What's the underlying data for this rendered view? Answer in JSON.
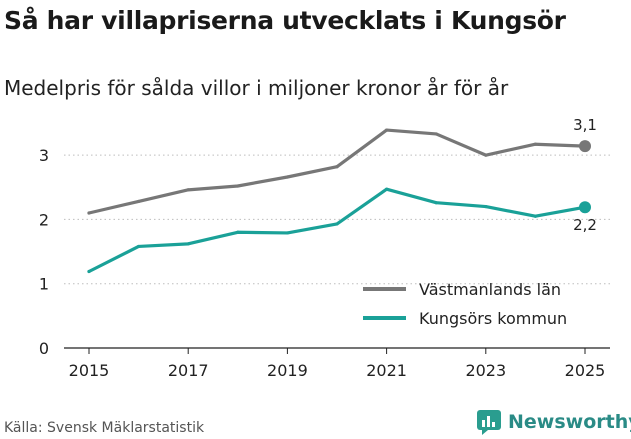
{
  "title": "Så har villapriserna utvecklats i Kungsör",
  "subtitle": "Medelpris för sålda villor i miljoner kronor år för år",
  "source": "Källa: Svensk Mäklarstatistik",
  "brand": {
    "name": "Newsworthy",
    "icon": "newsworthy-logo-icon",
    "color": "#2a9d8f"
  },
  "chart_data": {
    "type": "line",
    "x": [
      2015,
      2016,
      2017,
      2018,
      2019,
      2020,
      2021,
      2022,
      2023,
      2024,
      2025
    ],
    "ylim": [
      0,
      3.5
    ],
    "xlim": [
      2015,
      2025
    ],
    "yticks": [
      0,
      1,
      2,
      3
    ],
    "ytick_labels": [
      "0",
      "1",
      "2",
      "3"
    ],
    "xticks": [
      2015,
      2017,
      2019,
      2021,
      2023,
      2025
    ],
    "xtick_labels": [
      "2015",
      "2017",
      "2019",
      "2021",
      "2023",
      "2025"
    ],
    "grid": true,
    "legend_position": "bottom-right",
    "series": [
      {
        "name": "Västmanlands län",
        "color": "#777777",
        "values": [
          2.1,
          2.28,
          2.46,
          2.52,
          2.66,
          2.82,
          3.39,
          3.33,
          3.0,
          3.17,
          3.14
        ],
        "end_label": "3,1"
      },
      {
        "name": "Kungsörs kommun",
        "color": "#1aa198",
        "values": [
          1.19,
          1.58,
          1.62,
          1.8,
          1.79,
          1.93,
          2.47,
          2.26,
          2.2,
          2.05,
          2.19
        ],
        "end_label": "2,2"
      }
    ]
  }
}
